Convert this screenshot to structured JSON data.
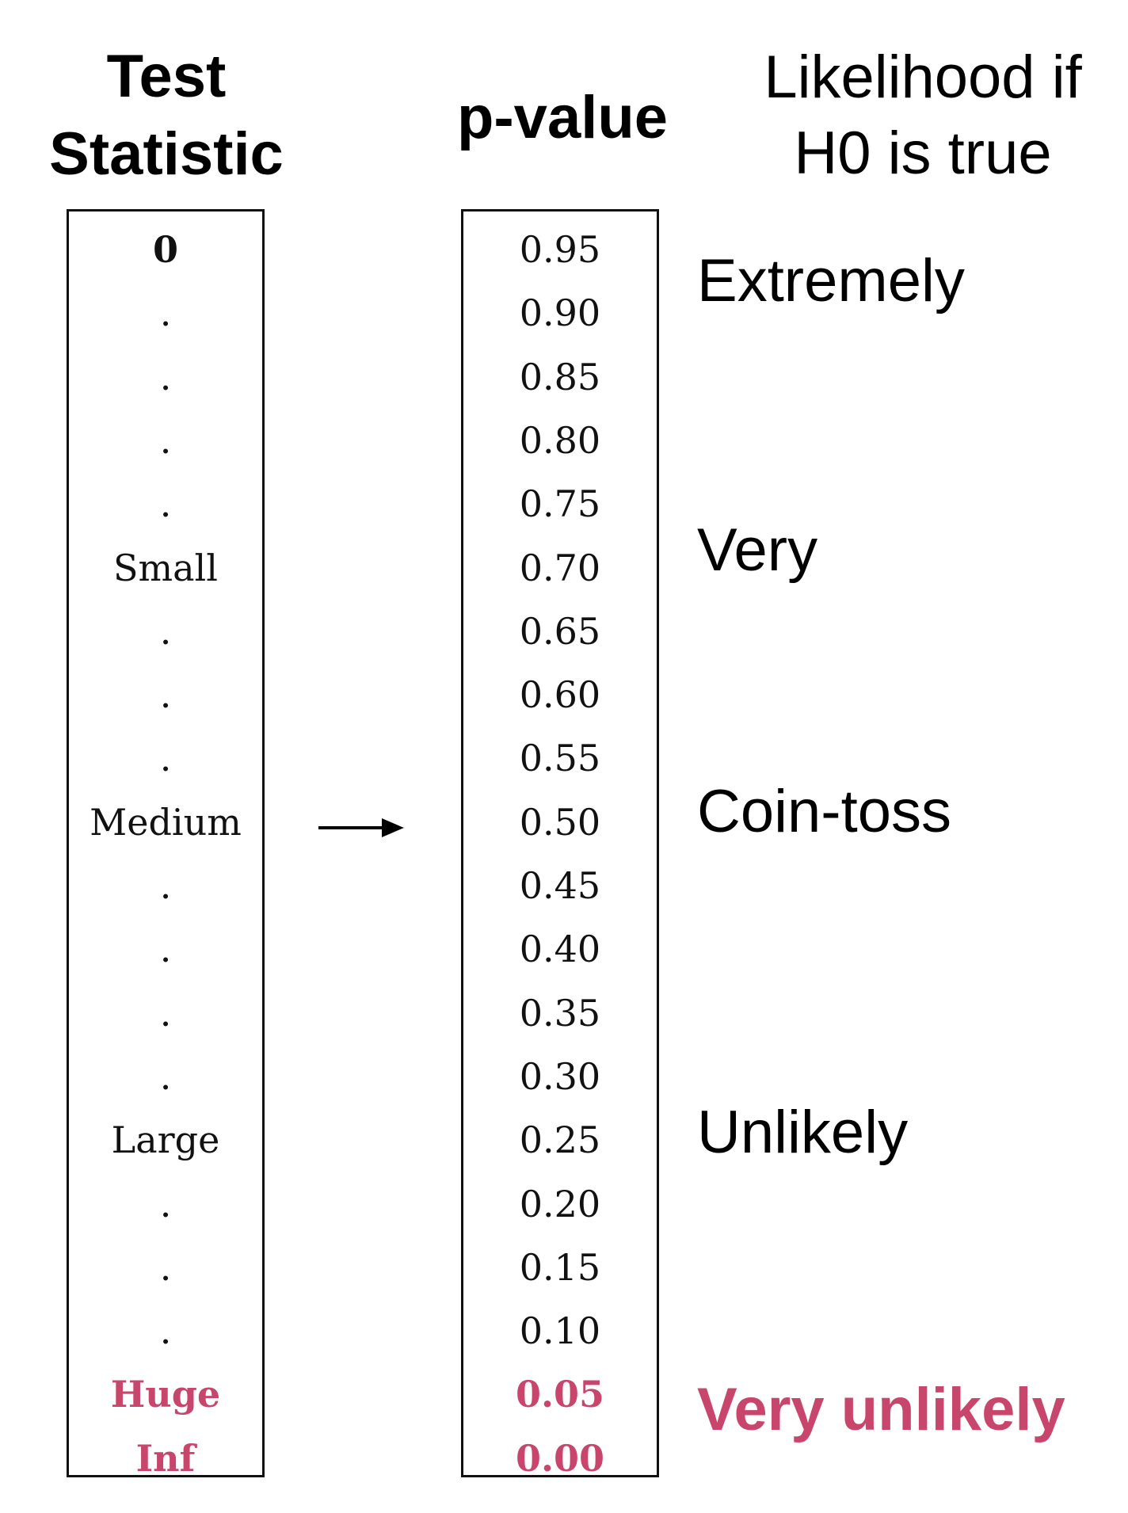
{
  "headers": {
    "test_statistic": [
      "Test",
      "Statistic"
    ],
    "p_value": "p-value",
    "likelihood": [
      "Likelihood if",
      "H0 is true"
    ]
  },
  "highlight_color": "#c8466b",
  "test_statistic_column": [
    {
      "text": "0",
      "bold": true,
      "highlight": false
    },
    {
      "text": ".",
      "bold": false,
      "highlight": false
    },
    {
      "text": ".",
      "bold": false,
      "highlight": false
    },
    {
      "text": ".",
      "bold": false,
      "highlight": false
    },
    {
      "text": ".",
      "bold": false,
      "highlight": false
    },
    {
      "text": "Small",
      "bold": false,
      "highlight": false
    },
    {
      "text": ".",
      "bold": false,
      "highlight": false
    },
    {
      "text": ".",
      "bold": false,
      "highlight": false
    },
    {
      "text": ".",
      "bold": false,
      "highlight": false
    },
    {
      "text": "Medium",
      "bold": false,
      "highlight": false
    },
    {
      "text": ".",
      "bold": false,
      "highlight": false
    },
    {
      "text": ".",
      "bold": false,
      "highlight": false
    },
    {
      "text": ".",
      "bold": false,
      "highlight": false
    },
    {
      "text": ".",
      "bold": false,
      "highlight": false
    },
    {
      "text": "Large",
      "bold": false,
      "highlight": false
    },
    {
      "text": ".",
      "bold": false,
      "highlight": false
    },
    {
      "text": ".",
      "bold": false,
      "highlight": false
    },
    {
      "text": ".",
      "bold": false,
      "highlight": false
    },
    {
      "text": "Huge",
      "bold": true,
      "highlight": true
    },
    {
      "text": "Inf",
      "bold": true,
      "highlight": true
    }
  ],
  "p_value_column": [
    {
      "text": "0.95",
      "bold": false,
      "highlight": false
    },
    {
      "text": "0.90",
      "bold": false,
      "highlight": false
    },
    {
      "text": "0.85",
      "bold": false,
      "highlight": false
    },
    {
      "text": "0.80",
      "bold": false,
      "highlight": false
    },
    {
      "text": "0.75",
      "bold": false,
      "highlight": false
    },
    {
      "text": "0.70",
      "bold": false,
      "highlight": false
    },
    {
      "text": "0.65",
      "bold": false,
      "highlight": false
    },
    {
      "text": "0.60",
      "bold": false,
      "highlight": false
    },
    {
      "text": "0.55",
      "bold": false,
      "highlight": false
    },
    {
      "text": "0.50",
      "bold": false,
      "highlight": false
    },
    {
      "text": "0.45",
      "bold": false,
      "highlight": false
    },
    {
      "text": "0.40",
      "bold": false,
      "highlight": false
    },
    {
      "text": "0.35",
      "bold": false,
      "highlight": false
    },
    {
      "text": "0.30",
      "bold": false,
      "highlight": false
    },
    {
      "text": "0.25",
      "bold": false,
      "highlight": false
    },
    {
      "text": "0.20",
      "bold": false,
      "highlight": false
    },
    {
      "text": "0.15",
      "bold": false,
      "highlight": false
    },
    {
      "text": "0.10",
      "bold": false,
      "highlight": false
    },
    {
      "text": "0.05",
      "bold": true,
      "highlight": true
    },
    {
      "text": "0.00",
      "bold": true,
      "highlight": true
    }
  ],
  "likelihood_labels": [
    {
      "text": "Extremely",
      "bold": false,
      "highlight": false
    },
    {
      "text": "Very",
      "bold": false,
      "highlight": false
    },
    {
      "text": "Coin-toss",
      "bold": false,
      "highlight": false
    },
    {
      "text": "Unlikely",
      "bold": false,
      "highlight": false
    },
    {
      "text": "Very unlikely",
      "bold": true,
      "highlight": true
    }
  ]
}
